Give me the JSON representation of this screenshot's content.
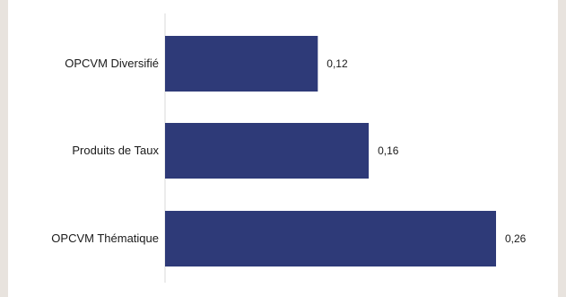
{
  "chart_data": {
    "type": "bar",
    "orientation": "horizontal",
    "categories": [
      "OPCVM Diversifié",
      "Produits de Taux",
      "OPCVM Thématique"
    ],
    "values": [
      0.12,
      0.16,
      0.26
    ],
    "value_labels": [
      "0,12",
      "0,16",
      "0,26"
    ],
    "xlim": [
      0,
      0.26
    ],
    "grid": false,
    "bar_color": "#2e3a78",
    "axis_line_color": "#d9d9d9"
  }
}
